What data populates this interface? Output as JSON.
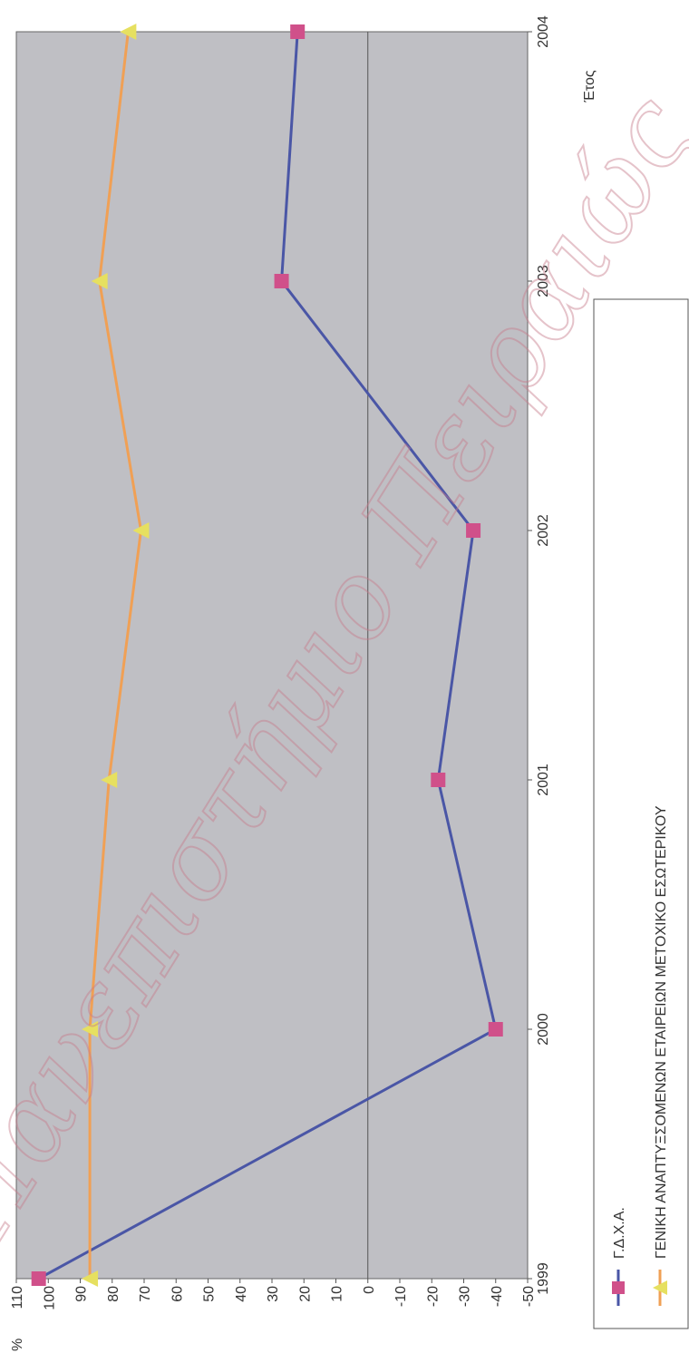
{
  "chart_data": {
    "type": "line",
    "title": "",
    "x_axis_label": "Έτος",
    "y_axis_unit": "%",
    "categories": [
      "1999",
      "2000",
      "2001",
      "2002",
      "2003",
      "2004"
    ],
    "y_ticks": [
      "110",
      "100",
      "90",
      "80",
      "70",
      "60",
      "50",
      "40",
      "30",
      "20",
      "10",
      "0",
      "-10",
      "-20",
      "-30",
      "-40",
      "-50"
    ],
    "ylim": [
      -50,
      110
    ],
    "grid": "zero-line only",
    "orientation": "rotated 90° (values on vertical axis at bottom, years along right side)",
    "legend_position": "bottom",
    "series": [
      {
        "name": "Γ.Δ.Χ.Α.",
        "color": "#4a56a6",
        "marker": "square",
        "marker_color": "#d0508a",
        "values": [
          103,
          -40,
          -22,
          -33,
          27,
          22
        ]
      },
      {
        "name": "ΓΕΝΙΚΗ ΑΝΑΠΤΥΞΣΟΜΕΝΩΝ ΕΤΑΙΡΕΙΩΝ ΜΕΤΟΧΙΚΟ ΕΣΩΤΕΡΙΚΟΥ",
        "color": "#f0a055",
        "marker": "triangle",
        "marker_color": "#e6e060",
        "values": [
          87,
          87,
          81,
          71,
          84,
          75
        ]
      }
    ],
    "plot_background": "#bfbfc4",
    "watermark": "Πανεπιστήμιο Πειραιώς"
  }
}
